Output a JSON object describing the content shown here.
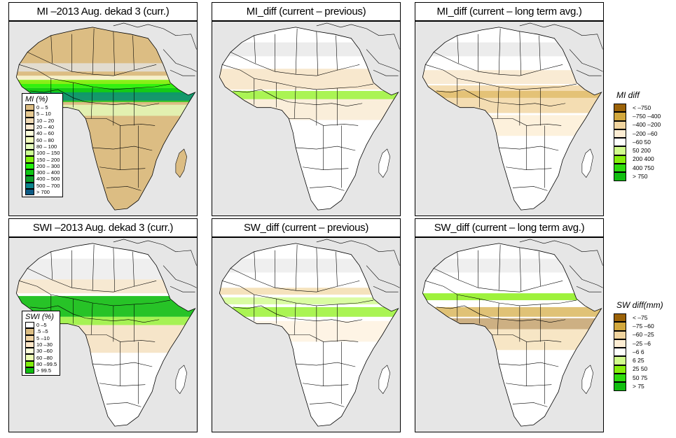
{
  "panels": [
    {
      "id": "mi-current",
      "title": "MI –2013 Aug. dekad 3 (curr.)",
      "variant": "mi-current"
    },
    {
      "id": "mi-diff-previous",
      "title": "MI_diff (current – previous)",
      "variant": "mi-diff-prev"
    },
    {
      "id": "mi-diff-lta",
      "title": "MI_diff (current – long term avg.)",
      "variant": "mi-diff-lta"
    },
    {
      "id": "swi-current",
      "title": "SWI –2013 Aug. dekad 3 (curr.)",
      "variant": "swi-current"
    },
    {
      "id": "sw-diff-previous",
      "title": "SW_diff (current – previous)",
      "variant": "sw-diff-prev"
    },
    {
      "id": "sw-diff-lta",
      "title": "SW_diff (current – long term avg.)",
      "variant": "sw-diff-lta"
    }
  ],
  "legends": {
    "mi": {
      "title": "MI (%)",
      "items": [
        {
          "label": "0 – 5",
          "color": "#dcbd83"
        },
        {
          "label": "5 – 10",
          "color": "#e6c992"
        },
        {
          "label": "10 – 20",
          "color": "#f0dab5"
        },
        {
          "label": "20 – 40",
          "color": "#fbe9d0"
        },
        {
          "label": "40 – 60",
          "color": "#fcfddb"
        },
        {
          "label": "60 – 80",
          "color": "#f3fdbf"
        },
        {
          "label": "80 – 100",
          "color": "#e4fdbb"
        },
        {
          "label": "100 – 150",
          "color": "#ccfd92"
        },
        {
          "label": "150 – 200",
          "color": "#80f20c"
        },
        {
          "label": "200 – 300",
          "color": "#22f20c"
        },
        {
          "label": "300 – 400",
          "color": "#0ec614"
        },
        {
          "label": "400 – 500",
          "color": "#0d9f2a"
        },
        {
          "label": "500 – 700",
          "color": "#0c848c"
        },
        {
          "label": "> 700",
          "color": "#0b5a84"
        }
      ]
    },
    "swi": {
      "title": "SWI (%)",
      "items": [
        {
          "label": "0 –5",
          "color": "#ffffff"
        },
        {
          "label": ".5 –5",
          "color": "#dcbd83"
        },
        {
          "label": "5 –10",
          "color": "#f0d4a5"
        },
        {
          "label": "10 –30",
          "color": "#fce6c8"
        },
        {
          "label": "30 –60",
          "color": "#fcfdda"
        },
        {
          "label": "60 –80",
          "color": "#ebfcb4"
        },
        {
          "label": "80 –99.5",
          "color": "#80ec0c"
        },
        {
          "label": "> 99.5",
          "color": "#10bd10"
        }
      ]
    },
    "mi_diff": {
      "title": "MI diff",
      "items": [
        {
          "label": "< –750",
          "color": "#9b6207"
        },
        {
          "label": "–750 –400",
          "color": "#d3a83c"
        },
        {
          "label": "–400 –200",
          "color": "#f1d59f"
        },
        {
          "label": "–200 –60",
          "color": "#fdedd3"
        },
        {
          "label": "–60  50",
          "color": "#ffffff"
        },
        {
          "label": "50  200",
          "color": "#d1fb8c"
        },
        {
          "label": "200  400",
          "color": "#86ef0b"
        },
        {
          "label": "400  750",
          "color": "#2ddc0c"
        },
        {
          "label": "> 750",
          "color": "#10be10"
        }
      ]
    },
    "sw_diff": {
      "title": "SW diff(mm)",
      "items": [
        {
          "label": "< –75",
          "color": "#9b6207"
        },
        {
          "label": "–75 –60",
          "color": "#d3a83c"
        },
        {
          "label": "–60 –25",
          "color": "#f1d59f"
        },
        {
          "label": "–25 –6",
          "color": "#fdedd3"
        },
        {
          "label": "–6  6",
          "color": "#ffffff"
        },
        {
          "label": "6  25",
          "color": "#d1fb8c"
        },
        {
          "label": "25  50",
          "color": "#86ef0b"
        },
        {
          "label": "50  75",
          "color": "#2ddc0c"
        },
        {
          "label": "> 75",
          "color": "#10be10"
        }
      ]
    }
  },
  "colors": {
    "ocean": "#e6e6e6",
    "border": "#000000",
    "nodata": "#dcdcdc"
  }
}
